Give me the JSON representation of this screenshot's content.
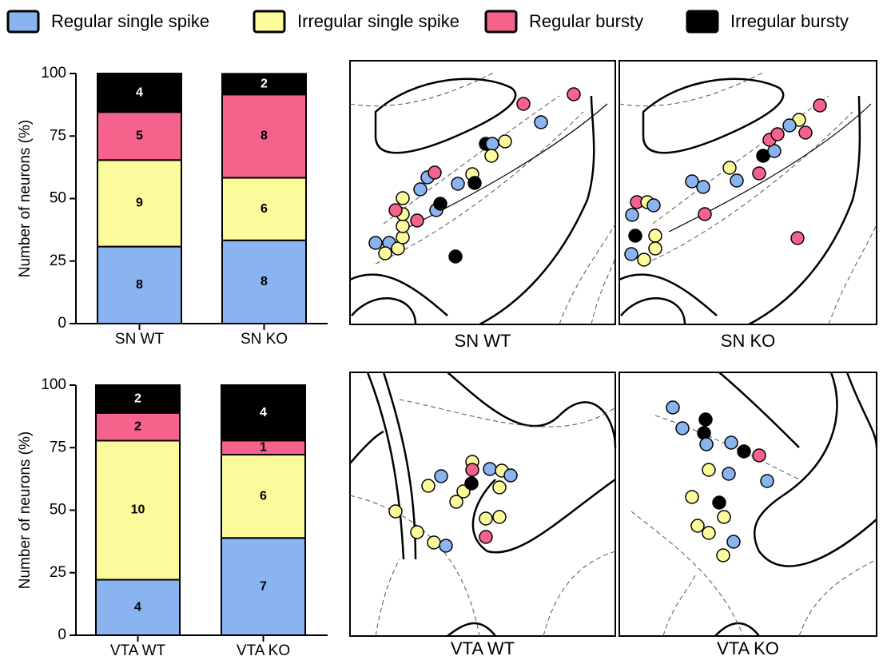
{
  "chart_data": [
    {
      "type": "bar",
      "stacked": true,
      "ylabel": "Number of neurons (%)",
      "categories": [
        "SN WT",
        "SN KO"
      ],
      "ylim": [
        0,
        100
      ],
      "yticks": [
        0,
        25,
        50,
        75,
        100
      ],
      "series": [
        {
          "name": "Regular single spike",
          "color": "#8ab4f0",
          "values": [
            30.8,
            33.3
          ],
          "counts": [
            8,
            8
          ]
        },
        {
          "name": "Irregular single spike",
          "color": "#fbfb9c",
          "values": [
            34.6,
            25.0
          ],
          "counts": [
            9,
            6
          ]
        },
        {
          "name": "Regular bursty",
          "color": "#f5638c",
          "values": [
            19.2,
            33.3
          ],
          "counts": [
            5,
            8
          ]
        },
        {
          "name": "Irregular bursty",
          "color": "#000000",
          "values": [
            15.4,
            8.3
          ],
          "counts": [
            4,
            2
          ]
        }
      ]
    },
    {
      "type": "bar",
      "stacked": true,
      "ylabel": "Number of neurons (%)",
      "categories": [
        "VTA WT",
        "VTA KO"
      ],
      "ylim": [
        0,
        100
      ],
      "yticks": [
        0,
        25,
        50,
        75,
        100
      ],
      "series": [
        {
          "name": "Regular single spike",
          "color": "#8ab4f0",
          "values": [
            22.2,
            38.9
          ],
          "counts": [
            4,
            7
          ]
        },
        {
          "name": "Irregular single spike",
          "color": "#fbfb9c",
          "values": [
            55.6,
            33.3
          ],
          "counts": [
            10,
            6
          ]
        },
        {
          "name": "Regular bursty",
          "color": "#f5638c",
          "values": [
            11.1,
            5.6
          ],
          "counts": [
            2,
            1
          ]
        },
        {
          "name": "Irregular bursty",
          "color": "#000000",
          "values": [
            11.1,
            22.2
          ],
          "counts": [
            2,
            4
          ]
        }
      ]
    }
  ],
  "maps": [
    "SN WT",
    "SN KO",
    "VTA WT",
    "VTA KO"
  ]
}
